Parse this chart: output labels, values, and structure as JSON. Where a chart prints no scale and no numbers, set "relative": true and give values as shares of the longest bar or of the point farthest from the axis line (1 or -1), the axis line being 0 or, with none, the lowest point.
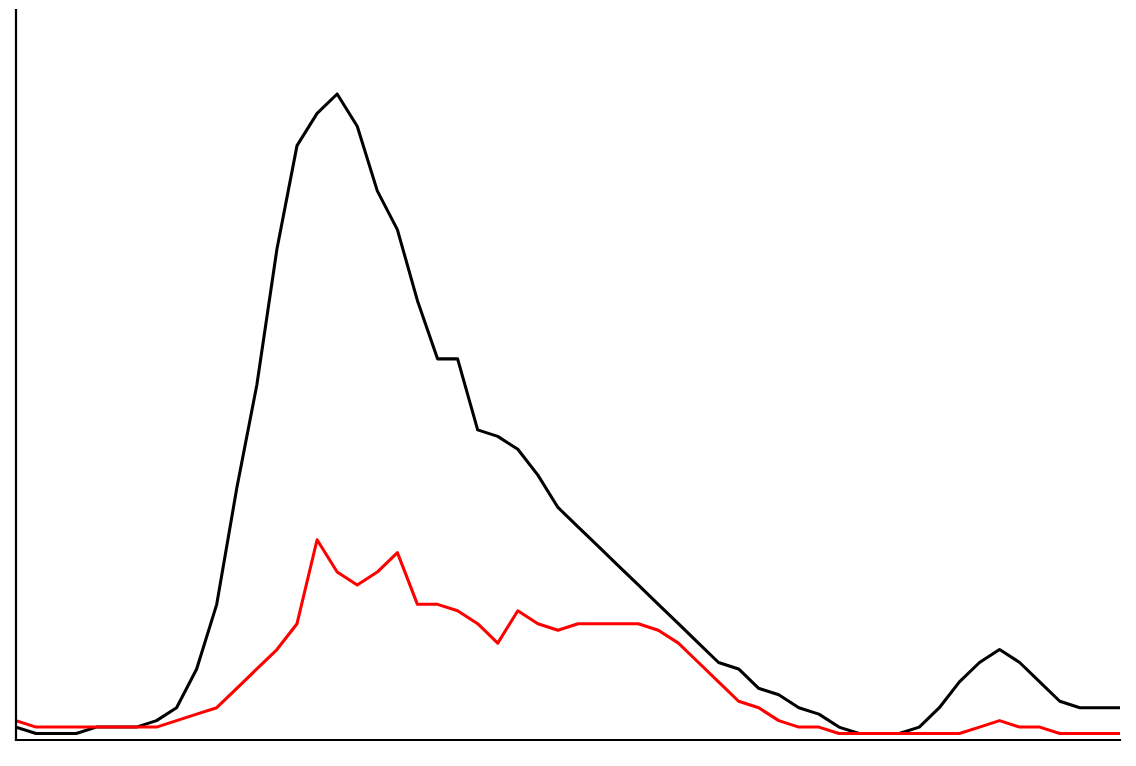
{
  "chart_data": {
    "type": "line",
    "relative": true,
    "categories": [
      null,
      null,
      null,
      null,
      null,
      null,
      null,
      null,
      null,
      null,
      null,
      null,
      null,
      null,
      null,
      null,
      null,
      null,
      null,
      null,
      null,
      null,
      null,
      null,
      null,
      null,
      null,
      null,
      null,
      null,
      null,
      null,
      null,
      null,
      null,
      null,
      null,
      null,
      null,
      null,
      null,
      null,
      null,
      null,
      null,
      null,
      null,
      null,
      null,
      null,
      null,
      null,
      null,
      null,
      null,
      null
    ],
    "series": [
      {
        "color": "#000000",
        "values": [
          0.02,
          0.01,
          0.01,
          0.01,
          0.02,
          0.02,
          0.02,
          0.03,
          0.05,
          0.11,
          0.21,
          0.39,
          0.55,
          0.76,
          0.92,
          0.97,
          1.0,
          0.95,
          0.85,
          0.79,
          0.68,
          0.59,
          0.59,
          0.48,
          0.47,
          0.45,
          0.41,
          0.36,
          0.33,
          0.3,
          0.27,
          0.24,
          0.21,
          0.18,
          0.15,
          0.12,
          0.11,
          0.08,
          0.07,
          0.05,
          0.04,
          0.02,
          0.01,
          0.01,
          0.01,
          0.02,
          0.05,
          0.09,
          0.12,
          0.14,
          0.12,
          0.09,
          0.06,
          0.05,
          0.05,
          0.05
        ]
      },
      {
        "color": "#ff0000",
        "values": [
          0.03,
          0.02,
          0.02,
          0.02,
          0.02,
          0.02,
          0.02,
          0.02,
          0.03,
          0.04,
          0.05,
          0.08,
          0.11,
          0.14,
          0.18,
          0.31,
          0.26,
          0.24,
          0.26,
          0.29,
          0.21,
          0.21,
          0.2,
          0.18,
          0.15,
          0.2,
          0.18,
          0.17,
          0.18,
          0.18,
          0.18,
          0.18,
          0.17,
          0.15,
          0.12,
          0.09,
          0.06,
          0.05,
          0.03,
          0.02,
          0.02,
          0.01,
          0.01,
          0.01,
          0.01,
          0.01,
          0.01,
          0.01,
          0.02,
          0.03,
          0.02,
          0.02,
          0.01,
          0.01,
          0.01,
          0.01
        ]
      }
    ]
  }
}
